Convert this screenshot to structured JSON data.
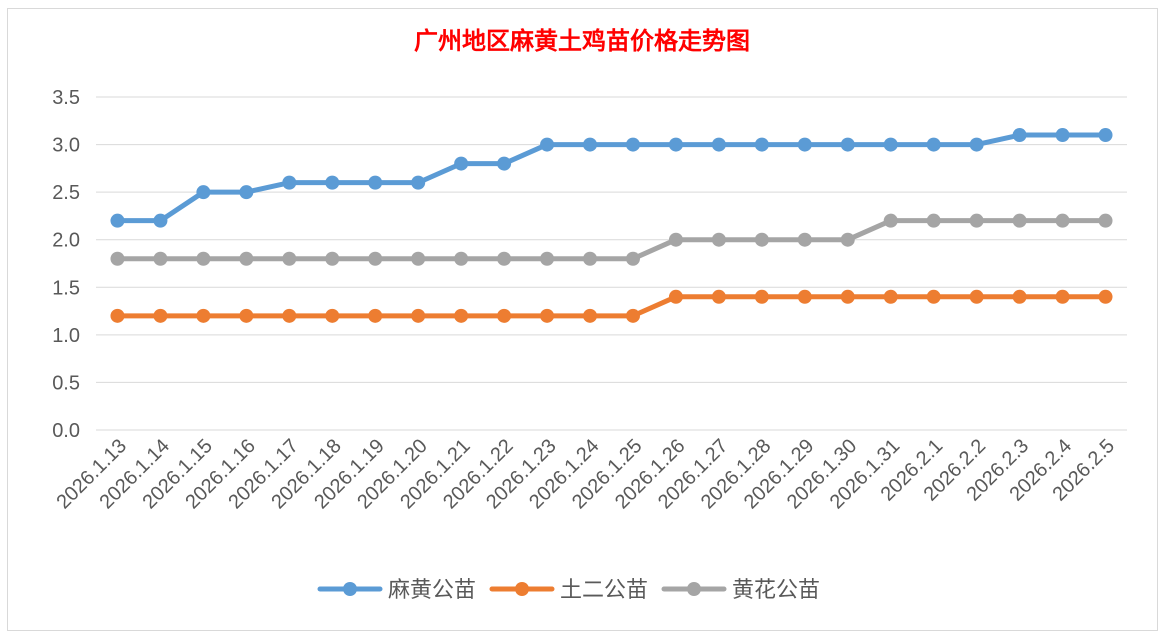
{
  "chart_data": {
    "type": "line",
    "title": "广州地区麻黄土鸡苗价格走势图",
    "xlabel": "",
    "ylabel": "",
    "ylim": [
      0,
      3.5
    ],
    "ytick_step": 0.5,
    "yticks": [
      "0.0",
      "0.5",
      "1.0",
      "1.5",
      "2.0",
      "2.5",
      "3.0",
      "3.5"
    ],
    "grid": true,
    "legend_position": "bottom",
    "categories": [
      "2026.1.13",
      "2026.1.14",
      "2026.1.15",
      "2026.1.16",
      "2026.1.17",
      "2026.1.18",
      "2026.1.19",
      "2026.1.20",
      "2026.1.21",
      "2026.1.22",
      "2026.1.23",
      "2026.1.24",
      "2026.1.25",
      "2026.1.26",
      "2026.1.27",
      "2026.1.28",
      "2026.1.29",
      "2026.1.30",
      "2026.1.31",
      "2026.2.1",
      "2026.2.2",
      "2026.2.3",
      "2026.2.4",
      "2026.2.5"
    ],
    "series": [
      {
        "name": "麻黄公苗",
        "color": "#5B9BD5",
        "values": [
          2.2,
          2.2,
          2.5,
          2.5,
          2.6,
          2.6,
          2.6,
          2.6,
          2.8,
          2.8,
          3.0,
          3.0,
          3.0,
          3.0,
          3.0,
          3.0,
          3.0,
          3.0,
          3.0,
          3.0,
          3.0,
          3.1,
          3.1,
          3.1
        ]
      },
      {
        "name": "土二公苗",
        "color": "#ED7D31",
        "values": [
          1.2,
          1.2,
          1.2,
          1.2,
          1.2,
          1.2,
          1.2,
          1.2,
          1.2,
          1.2,
          1.2,
          1.2,
          1.2,
          1.4,
          1.4,
          1.4,
          1.4,
          1.4,
          1.4,
          1.4,
          1.4,
          1.4,
          1.4,
          1.4
        ]
      },
      {
        "name": "黄花公苗",
        "color": "#A5A5A5",
        "values": [
          1.8,
          1.8,
          1.8,
          1.8,
          1.8,
          1.8,
          1.8,
          1.8,
          1.8,
          1.8,
          1.8,
          1.8,
          1.8,
          2.0,
          2.0,
          2.0,
          2.0,
          2.0,
          2.2,
          2.2,
          2.2,
          2.2,
          2.2,
          2.2
        ]
      }
    ],
    "title_color": "#FF0000",
    "gridline_color": "#D9D9D9",
    "axis_text_color": "#595959"
  }
}
